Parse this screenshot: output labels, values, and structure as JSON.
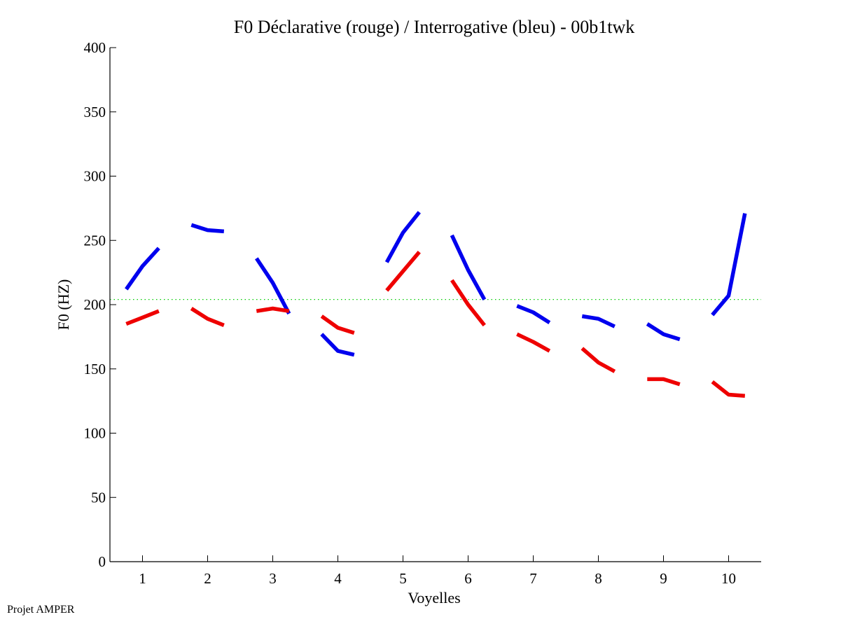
{
  "chart_data": {
    "type": "line",
    "title": "F0 Déclarative (rouge) / Interrogative (bleu) - 00b1twk",
    "xlabel": "Voyelles",
    "ylabel": "F0 (HZ)",
    "xlim": [
      0.5,
      10.5
    ],
    "ylim": [
      0,
      400
    ],
    "grid": false,
    "x_ticks": [
      1,
      2,
      3,
      4,
      5,
      6,
      7,
      8,
      9,
      10
    ],
    "x_tick_labels": [
      "1",
      "2",
      "3",
      "4",
      "5",
      "6",
      "7",
      "8",
      "9",
      "10"
    ],
    "y_ticks": [
      0,
      50,
      100,
      150,
      200,
      250,
      300,
      350,
      400
    ],
    "y_tick_labels": [
      "0",
      "50",
      "100",
      "150",
      "200",
      "250",
      "300",
      "350",
      "400"
    ],
    "reference_line": {
      "y": 204,
      "color": "#00cc00",
      "style": "dotted"
    },
    "series": [
      {
        "name": "Interrogative (bleu)",
        "color": "#0000ee",
        "segments": [
          {
            "vowel": 1,
            "x": [
              0.75,
              1.0,
              1.25
            ],
            "y": [
              212,
              230,
              244
            ]
          },
          {
            "vowel": 2,
            "x": [
              1.75,
              2.0,
              2.25
            ],
            "y": [
              262,
              258,
              257
            ]
          },
          {
            "vowel": 3,
            "x": [
              2.75,
              3.0,
              3.25
            ],
            "y": [
              236,
              217,
              193
            ]
          },
          {
            "vowel": 4,
            "x": [
              3.75,
              4.0,
              4.25
            ],
            "y": [
              177,
              164,
              161
            ]
          },
          {
            "vowel": 5,
            "x": [
              4.75,
              5.0,
              5.25
            ],
            "y": [
              233,
              256,
              272
            ]
          },
          {
            "vowel": 6,
            "x": [
              5.75,
              6.0,
              6.25
            ],
            "y": [
              254,
              227,
              204
            ]
          },
          {
            "vowel": 7,
            "x": [
              6.75,
              7.0,
              7.25
            ],
            "y": [
              199,
              194,
              186
            ]
          },
          {
            "vowel": 8,
            "x": [
              7.75,
              8.0,
              8.25
            ],
            "y": [
              191,
              189,
              183
            ]
          },
          {
            "vowel": 9,
            "x": [
              8.75,
              9.0,
              9.25
            ],
            "y": [
              185,
              177,
              173
            ]
          },
          {
            "vowel": 10,
            "x": [
              9.75,
              10.0,
              10.25
            ],
            "y": [
              192,
              207,
              271
            ]
          }
        ]
      },
      {
        "name": "Déclarative (rouge)",
        "color": "#ee0000",
        "segments": [
          {
            "vowel": 1,
            "x": [
              0.75,
              1.0,
              1.25
            ],
            "y": [
              185,
              190,
              195
            ]
          },
          {
            "vowel": 2,
            "x": [
              1.75,
              2.0,
              2.25
            ],
            "y": [
              197,
              189,
              184
            ]
          },
          {
            "vowel": 3,
            "x": [
              2.75,
              3.0,
              3.25
            ],
            "y": [
              195,
              197,
              195
            ]
          },
          {
            "vowel": 4,
            "x": [
              3.75,
              4.0,
              4.25
            ],
            "y": [
              191,
              182,
              178
            ]
          },
          {
            "vowel": 5,
            "x": [
              4.75,
              5.0,
              5.25
            ],
            "y": [
              211,
              226,
              241
            ]
          },
          {
            "vowel": 6,
            "x": [
              5.75,
              6.0,
              6.25
            ],
            "y": [
              219,
              200,
              184
            ]
          },
          {
            "vowel": 7,
            "x": [
              6.75,
              7.0,
              7.25
            ],
            "y": [
              177,
              171,
              164
            ]
          },
          {
            "vowel": 8,
            "x": [
              7.75,
              8.0,
              8.25
            ],
            "y": [
              166,
              155,
              148
            ]
          },
          {
            "vowel": 9,
            "x": [
              8.75,
              9.0,
              9.25
            ],
            "y": [
              142,
              142,
              138
            ]
          },
          {
            "vowel": 10,
            "x": [
              9.75,
              10.0,
              10.25
            ],
            "y": [
              140,
              130,
              129
            ]
          }
        ]
      }
    ]
  },
  "footer": {
    "text": "Projet AMPER"
  }
}
